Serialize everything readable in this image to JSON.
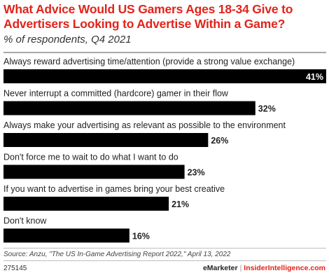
{
  "header": {
    "title": "What Advice Would US Gamers Ages 18-34 Give to Advertisers Looking to Advertise Within a Game?",
    "subtitle": "% of respondents, Q4 2021"
  },
  "chart_data": {
    "type": "bar",
    "orientation": "horizontal",
    "categories": [
      "Always reward advertising time/attention (provide a strong value exchange)",
      "Never interrupt a committed (hardcore) gamer in their flow",
      "Always make your advertising as relevant as possible to the environment",
      "Don't force me to wait to do what I want to do",
      "If you want to advertise in games bring your best creative",
      "Don't know"
    ],
    "values": [
      41,
      32,
      26,
      23,
      21,
      16
    ],
    "value_labels": [
      "41%",
      "32%",
      "26%",
      "23%",
      "21%",
      "16%"
    ],
    "unit": "%",
    "xlim": [
      0,
      41
    ],
    "grid": false,
    "legend": "none",
    "bar_color": "#000000"
  },
  "footer": {
    "source": "Source: Anzu, \"The US In-Game Advertising Report 2022,\" April 13, 2022",
    "code": "275145",
    "brand_emarketer": "eMarketer",
    "brand_separator": "|",
    "brand_insider": "InsiderIntelligence.com"
  },
  "colors": {
    "accent": "#e2231a",
    "bar": "#000000",
    "text": "#222222"
  }
}
